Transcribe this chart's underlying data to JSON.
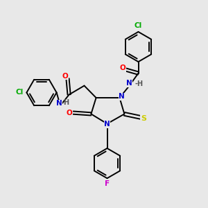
{
  "background_color": "#e8e8e8",
  "C": "#000000",
  "N": "#0000cc",
  "O": "#ff0000",
  "S": "#cccc00",
  "Cl": "#00aa00",
  "F": "#cc00cc",
  "H": "#555555",
  "lw": 1.4,
  "fs": 7.5
}
